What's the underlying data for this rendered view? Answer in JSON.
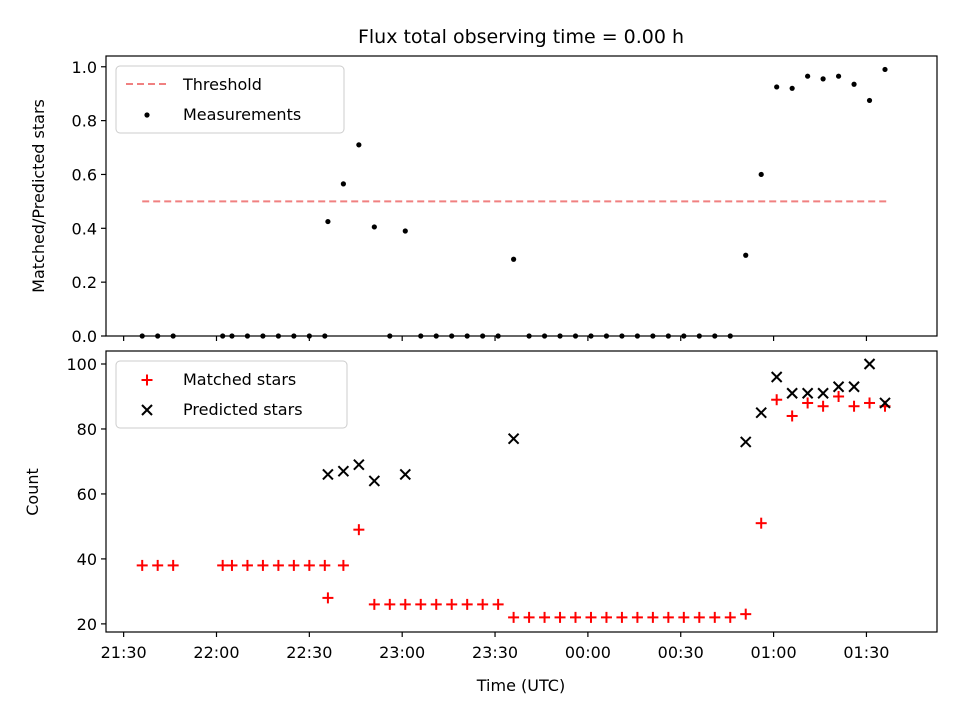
{
  "chart_data": {
    "title": "Flux total observing time = 0.00 h",
    "xlabel": "Time (UTC)",
    "x_tick_labels": [
      "21:30",
      "22:00",
      "22:30",
      "23:00",
      "23:30",
      "00:00",
      "00:30",
      "01:00",
      "01:30"
    ],
    "x_tick_minutes": [
      0,
      30,
      60,
      90,
      120,
      150,
      180,
      210,
      240
    ],
    "xlim_minutes": [
      -5.7,
      262.8
    ],
    "colors": {
      "threshold": "#f08080",
      "measurement": "#000000",
      "matched": "#ff0000",
      "predicted": "#000000"
    },
    "panels": [
      {
        "type": "scatter",
        "ylabel": "Matched/Predicted stars",
        "ylim": [
          0,
          1.04
        ],
        "y_ticks": [
          0.0,
          0.2,
          0.4,
          0.6,
          0.8,
          1.0
        ],
        "y_tick_labels": [
          "0.0",
          "0.2",
          "0.4",
          "0.6",
          "0.8",
          "1.0"
        ],
        "legend_position": "upper-left",
        "series": [
          {
            "name": "Threshold",
            "type": "line",
            "style": "dashed",
            "x_minutes": [
              6,
              247
            ],
            "y": [
              0.5,
              0.5
            ]
          },
          {
            "name": "Measurements",
            "type": "scatter",
            "marker": "dot",
            "x_minutes": [
              6,
              11,
              16,
              32,
              35,
              40,
              45,
              50,
              55,
              60,
              65,
              66,
              71,
              76,
              81,
              86,
              91,
              96,
              101,
              106,
              111,
              116,
              121,
              126,
              131,
              136,
              141,
              146,
              151,
              156,
              161,
              166,
              171,
              176,
              181,
              186,
              191,
              196,
              201,
              206,
              211,
              216,
              221,
              226,
              231,
              236,
              241,
              246
            ],
            "y": [
              0,
              0,
              0,
              0,
              0,
              0,
              0,
              0,
              0,
              0,
              0,
              0.425,
              0.565,
              0.71,
              0.405,
              0,
              0.39,
              0,
              0,
              0,
              0,
              0,
              0,
              0.285,
              0,
              0,
              0,
              0,
              0,
              0,
              0,
              0,
              0,
              0,
              0,
              0,
              0,
              0,
              0.3,
              0.6,
              0.925,
              0.92,
              0.965,
              0.955,
              0.965,
              0.935,
              0.875,
              0.99
            ]
          }
        ]
      },
      {
        "type": "scatter",
        "ylabel": "Count",
        "ylim": [
          17.5,
          104
        ],
        "y_ticks": [
          20,
          40,
          60,
          80,
          100
        ],
        "y_tick_labels": [
          "20",
          "40",
          "60",
          "80",
          "100"
        ],
        "legend_position": "upper-left",
        "series": [
          {
            "name": "Matched stars",
            "type": "scatter",
            "marker": "plus",
            "x_minutes": [
              6,
              11,
              16,
              32,
              35,
              40,
              45,
              50,
              55,
              60,
              65,
              66,
              71,
              76,
              81,
              86,
              91,
              96,
              101,
              106,
              111,
              116,
              121,
              126,
              131,
              136,
              141,
              146,
              151,
              156,
              161,
              166,
              171,
              176,
              181,
              186,
              191,
              196,
              201,
              206,
              211,
              216,
              221,
              226,
              231,
              236,
              241,
              246
            ],
            "y": [
              38,
              38,
              38,
              38,
              38,
              38,
              38,
              38,
              38,
              38,
              38,
              28,
              38,
              49,
              26,
              26,
              26,
              26,
              26,
              26,
              26,
              26,
              26,
              22,
              22,
              22,
              22,
              22,
              22,
              22,
              22,
              22,
              22,
              22,
              22,
              22,
              22,
              22,
              23,
              51,
              89,
              84,
              88,
              87,
              90,
              87,
              88,
              87
            ]
          },
          {
            "name": "Predicted stars",
            "type": "scatter",
            "marker": "x",
            "x_minutes": [
              66,
              71,
              76,
              81,
              91,
              126,
              201,
              206,
              211,
              216,
              221,
              226,
              231,
              236,
              241,
              246
            ],
            "y": [
              66,
              67,
              69,
              64,
              66,
              77,
              76,
              85,
              96,
              91,
              91,
              91,
              93,
              93,
              100,
              88
            ]
          }
        ]
      }
    ]
  }
}
